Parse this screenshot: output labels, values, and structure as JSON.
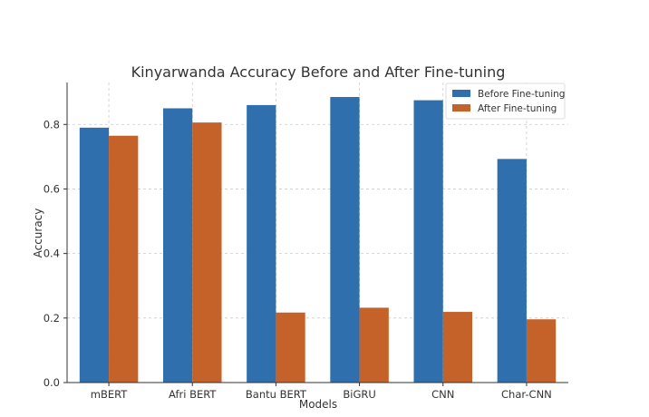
{
  "chart_data": {
    "type": "bar",
    "title": "Kinyarwanda Accuracy Before and After Fine-tuning",
    "xlabel": "Models",
    "ylabel": "Accuracy",
    "categories": [
      "mBERT",
      "Afri BERT",
      "Bantu BERT",
      "BiGRU",
      "CNN",
      "Char-CNN"
    ],
    "series": [
      {
        "name": "Before Fine-tuning",
        "color": "#2f6fad",
        "values": [
          0.79,
          0.85,
          0.86,
          0.885,
          0.875,
          0.693
        ]
      },
      {
        "name": "After Fine-tuning",
        "color": "#c5622a",
        "values": [
          0.765,
          0.806,
          0.217,
          0.232,
          0.219,
          0.196
        ]
      }
    ],
    "ylim": [
      0,
      0.93
    ],
    "yticks": [
      "0.0",
      "0.2",
      "0.4",
      "0.6",
      "0.8"
    ],
    "grid": true,
    "legend": "top-right"
  }
}
